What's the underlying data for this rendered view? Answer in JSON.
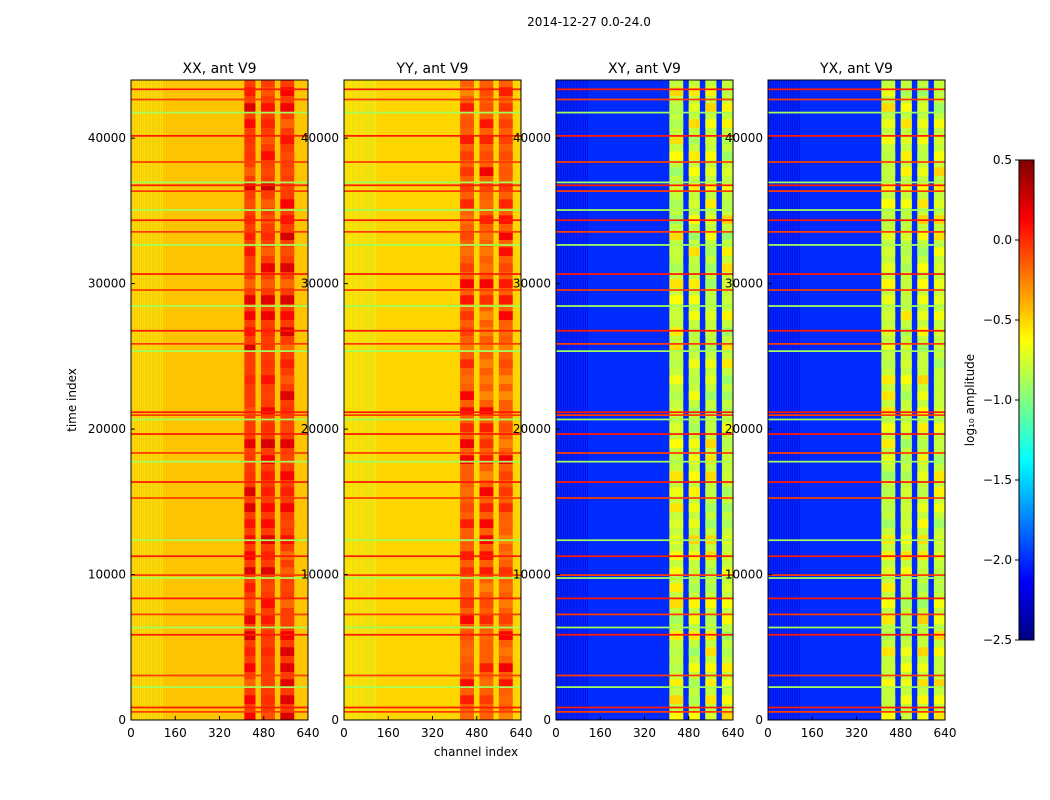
{
  "figure_title": "2014-12-27 0.0-24.0",
  "colors": {
    "colormap": "jet",
    "stop_colors": [
      "#00007f",
      "#0000ff",
      "#0080ff",
      "#00ffff",
      "#80ff80",
      "#ffff00",
      "#ff8000",
      "#ff0000",
      "#7f0000"
    ]
  },
  "chart_data": [
    {
      "type": "heatmap",
      "title": "XX, ant V9",
      "xlabel": "",
      "ylabel": "time index",
      "xlim": [
        0,
        640
      ],
      "ylim": [
        0,
        44000
      ],
      "xticks": [
        "0",
        "160",
        "320",
        "480",
        "640"
      ],
      "yticks": [
        "0",
        "10000",
        "20000",
        "30000",
        "40000"
      ],
      "base_log_amplitude": -0.45,
      "rfi_band_log_amplitude": -0.05,
      "rfi_band_channels": [
        410,
        600
      ],
      "rfi_band_column_groups": [
        [
          410,
          450
        ],
        [
          470,
          520
        ],
        [
          540,
          590
        ]
      ]
    },
    {
      "type": "heatmap",
      "title": "YY, ant V9",
      "xlabel": "channel index",
      "ylabel": "",
      "xlim": [
        0,
        640
      ],
      "ylim": [
        0,
        44000
      ],
      "xticks": [
        "0",
        "160",
        "320",
        "480",
        "640"
      ],
      "yticks": [
        "0",
        "10000",
        "20000",
        "30000",
        "40000"
      ],
      "base_log_amplitude": -0.5,
      "rfi_band_log_amplitude": -0.15,
      "rfi_band_channels": [
        400,
        640
      ],
      "rfi_band_column_groups": [
        [
          420,
          470
        ],
        [
          490,
          540
        ],
        [
          560,
          610
        ]
      ]
    },
    {
      "type": "heatmap",
      "title": "XY, ant V9",
      "xlabel": "",
      "ylabel": "",
      "xlim": [
        0,
        640
      ],
      "ylim": [
        0,
        44000
      ],
      "xticks": [
        "0",
        "160",
        "320",
        "480",
        "640"
      ],
      "yticks": [
        "0",
        "10000",
        "20000",
        "30000",
        "40000"
      ],
      "base_log_amplitude": -2.0,
      "rfi_band_log_amplitude": -0.8,
      "rfi_band_channels": [
        410,
        640
      ],
      "rfi_band_column_groups": [
        [
          410,
          460
        ],
        [
          480,
          520
        ],
        [
          540,
          580
        ],
        [
          600,
          640
        ]
      ]
    },
    {
      "type": "heatmap",
      "title": "YX, ant V9",
      "xlabel": "",
      "ylabel": "",
      "xlim": [
        0,
        640
      ],
      "ylim": [
        0,
        44000
      ],
      "xticks": [
        "0",
        "160",
        "320",
        "480",
        "640"
      ],
      "yticks": [
        "0",
        "10000",
        "20000",
        "30000",
        "40000"
      ],
      "base_log_amplitude": -2.0,
      "rfi_band_log_amplitude": -0.8,
      "rfi_band_channels": [
        410,
        640
      ],
      "rfi_band_column_groups": [
        [
          410,
          460
        ],
        [
          480,
          520
        ],
        [
          540,
          580
        ],
        [
          600,
          640
        ]
      ]
    }
  ],
  "colorbar": {
    "label": "log₁₀ amplitude",
    "range": [
      -2.5,
      0.5
    ],
    "ticks": [
      "0.5",
      "0.0",
      "−0.5",
      "−1.0",
      "−1.5",
      "−2.0",
      "−2.5"
    ],
    "tick_values": [
      0.5,
      0.0,
      -0.5,
      -1.0,
      -1.5,
      -2.0,
      -2.5
    ]
  },
  "flagged_rows": [
    500,
    800,
    2200,
    3000,
    5800,
    6300,
    7200,
    8300,
    9700,
    9900,
    11200,
    12300,
    15200,
    16300,
    17700,
    18300,
    19600,
    20600,
    20900,
    21100,
    25300,
    25800,
    26700,
    28400,
    29500,
    30600,
    32600,
    33500,
    34300,
    35000,
    36300,
    36700,
    36900,
    38300,
    40100,
    41700,
    42600,
    43300
  ]
}
